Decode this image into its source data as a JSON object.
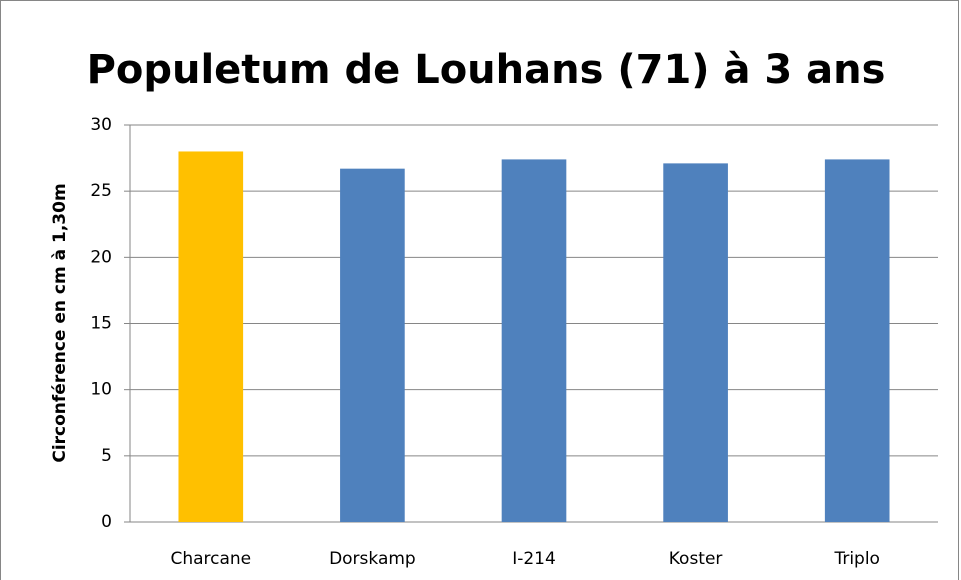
{
  "chart_data": {
    "type": "bar",
    "title": "Populetum de Louhans (71) à 3 ans",
    "y_label": "Circonférence en cm à 1,30m",
    "categories": [
      "Charcane",
      "Dorskamp",
      "I-214",
      "Koster",
      "Triplo"
    ],
    "values": [
      28,
      26.7,
      27.4,
      27.1,
      27.4
    ],
    "colors": [
      "#ffc000",
      "#4f81bd",
      "#4f81bd",
      "#4f81bd",
      "#4f81bd"
    ],
    "ylim": [
      0,
      30
    ],
    "yticks": [
      0,
      5,
      10,
      15,
      20,
      25,
      30
    ],
    "grid": true
  }
}
